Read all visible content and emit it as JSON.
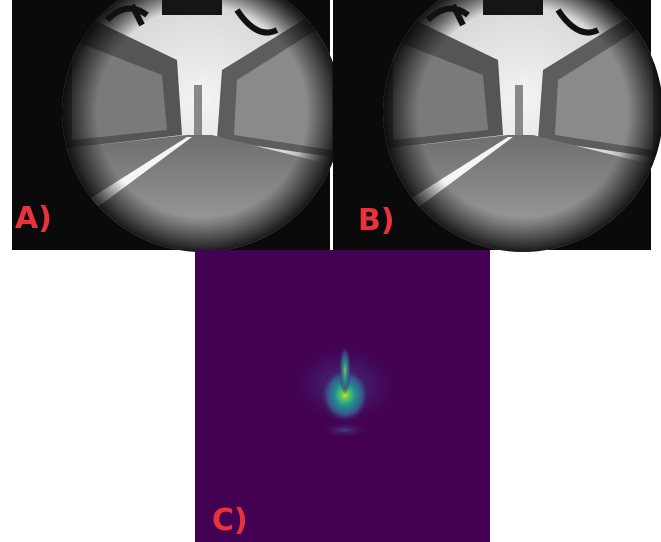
{
  "panels": [
    {
      "label": "A)"
    },
    {
      "label": "B)"
    },
    {
      "label": "C)"
    }
  ]
}
